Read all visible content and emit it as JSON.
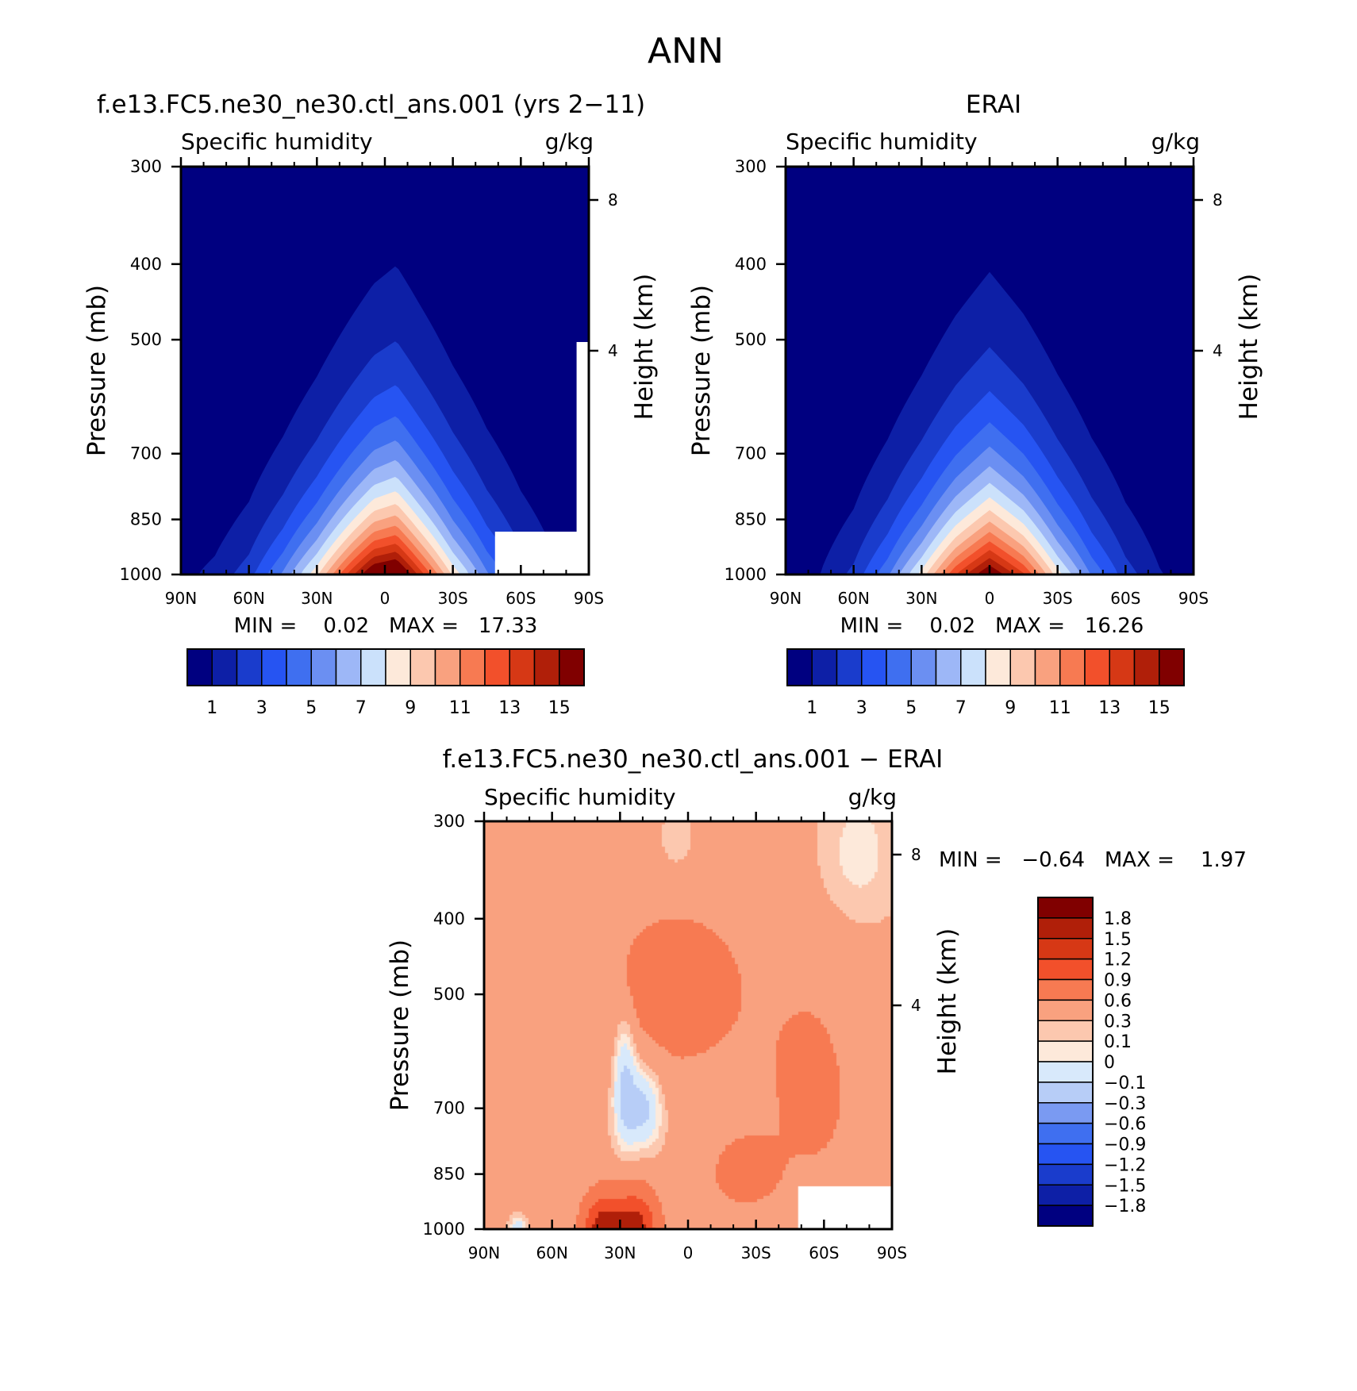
{
  "title": "ANN",
  "colors": {
    "humidity_levels": [
      "#000080",
      "#0d1fa6",
      "#1a3ccc",
      "#2654f2",
      "#3f6ff0",
      "#6b8ff2",
      "#9db7f7",
      "#cbe1fb",
      "#fde9da",
      "#fcc8af",
      "#f9a17f",
      "#f77a52",
      "#f2502b",
      "#d63815",
      "#b01f09",
      "#800000"
    ],
    "diff_levels": [
      "#000080",
      "#0d1fa6",
      "#1a3ccc",
      "#3056f2",
      "#7a9af2",
      "#b7cdf7",
      "#d8e9fb",
      "#fde9da",
      "#fcc8af",
      "#f9a17f",
      "#f77a52",
      "#f2502b",
      "#b01f09",
      "#800000"
    ]
  },
  "panels": [
    {
      "title": "f.e13.FC5.ne30_ne30.ctl_ans.001 (yrs 2−11)",
      "left_string": "Specific humidity",
      "right_string": "g/kg",
      "min_max": "MIN =    0.02   MAX =   17.33"
    },
    {
      "title": "ERAI",
      "left_string": "Specific humidity",
      "right_string": "g/kg",
      "min_max": "MIN =    0.02   MAX =   16.26"
    },
    {
      "title": "f.e13.FC5.ne30_ne30.ctl_ans.001 − ERAI",
      "left_string": "Specific humidity",
      "right_string": "g/kg",
      "min_max": "MIN =   −0.64   MAX =    1.97"
    }
  ],
  "axes": {
    "xlabels": [
      "90N",
      "60N",
      "30N",
      "0",
      "30S",
      "60S",
      "90S"
    ],
    "ylabel": "Pressure (mb)",
    "ylabels": [
      "300",
      "400",
      "500",
      "700",
      "850",
      "1000"
    ],
    "y2label": "Height (km)",
    "y2labels": [
      "8",
      "4"
    ]
  },
  "chart_data": [
    {
      "type": "heatmap",
      "title": "f.e13.FC5.ne30_ne30.ctl_ans.001 (yrs 2−11)",
      "subtitle": "Specific humidity",
      "units": "g/kg",
      "xlabel": "",
      "ylabel": "Pressure (mb)",
      "y2label": "Height (km)",
      "x": [
        "90N",
        "60N",
        "30N",
        "0",
        "30S",
        "60S",
        "90S"
      ],
      "x_range": [
        90,
        -90
      ],
      "y_ticks": [
        300,
        400,
        500,
        700,
        850,
        1000
      ],
      "y_range": [
        300,
        1000
      ],
      "y_scale": "log-pressure",
      "y2_ticks": [
        8,
        4
      ],
      "colorbar_labels": [
        "1",
        "3",
        "5",
        "7",
        "9",
        "11",
        "13",
        "15"
      ],
      "levels": [
        1,
        2,
        3,
        4,
        5,
        6,
        7,
        8,
        9,
        10,
        11,
        12,
        13,
        14,
        15
      ],
      "min": 0.02,
      "max": 17.33,
      "profile_peak_lat": -5,
      "profile": [
        [
          -90,
          0.3
        ],
        [
          -75,
          1.3
        ],
        [
          -60,
          2.8
        ],
        [
          -45,
          5.2
        ],
        [
          -30,
          8.8
        ],
        [
          -15,
          13.8
        ],
        [
          -5,
          17.3
        ],
        [
          5,
          16.6
        ],
        [
          15,
          13.6
        ],
        [
          30,
          8.8
        ],
        [
          45,
          5.2
        ],
        [
          60,
          2.6
        ],
        [
          75,
          1.3
        ],
        [
          90,
          0.7
        ]
      ]
    },
    {
      "type": "heatmap",
      "title": "ERAI",
      "subtitle": "Specific humidity",
      "units": "g/kg",
      "xlabel": "",
      "ylabel": "Pressure (mb)",
      "y2label": "Height (km)",
      "x": [
        "90N",
        "60N",
        "30N",
        "0",
        "30S",
        "60S",
        "90S"
      ],
      "x_range": [
        90,
        -90
      ],
      "y_ticks": [
        300,
        400,
        500,
        700,
        850,
        1000
      ],
      "y_range": [
        300,
        1000
      ],
      "y_scale": "log-pressure",
      "y2_ticks": [
        8,
        4
      ],
      "colorbar_labels": [
        "1",
        "3",
        "5",
        "7",
        "9",
        "11",
        "13",
        "15"
      ],
      "levels": [
        1,
        2,
        3,
        4,
        5,
        6,
        7,
        8,
        9,
        10,
        11,
        12,
        13,
        14,
        15
      ],
      "min": 0.02,
      "max": 16.26,
      "profile_peak_lat": 0,
      "profile": [
        [
          -90,
          0.3
        ],
        [
          -75,
          1.1
        ],
        [
          -60,
          2.5
        ],
        [
          -45,
          4.9
        ],
        [
          -30,
          8.5
        ],
        [
          -15,
          13.2
        ],
        [
          0,
          16.3
        ],
        [
          15,
          13.0
        ],
        [
          30,
          8.4
        ],
        [
          45,
          4.8
        ],
        [
          60,
          2.3
        ],
        [
          75,
          1.0
        ],
        [
          90,
          0.4
        ]
      ]
    },
    {
      "type": "heatmap",
      "title": "f.e13.FC5.ne30_ne30.ctl_ans.001 − ERAI",
      "subtitle": "Specific humidity",
      "units": "g/kg",
      "xlabel": "",
      "ylabel": "Pressure (mb)",
      "y2label": "Height (km)",
      "x": [
        "90N",
        "60N",
        "30N",
        "0",
        "30S",
        "60S",
        "90S"
      ],
      "x_range": [
        90,
        -90
      ],
      "y_ticks": [
        300,
        400,
        500,
        700,
        850,
        1000
      ],
      "y_range": [
        300,
        1000
      ],
      "y_scale": "log-pressure",
      "y2_ticks": [
        8,
        4
      ],
      "colorbar_labels": [
        "1.8",
        "1.5",
        "1.2",
        "0.9",
        "0.6",
        "0.3",
        "0.1",
        "0",
        "−0.1",
        "−0.3",
        "−0.6",
        "−0.9",
        "−1.2",
        "−1.5",
        "−1.8"
      ],
      "levels": [
        -1.8,
        -1.5,
        -1.2,
        -0.9,
        -0.6,
        -0.3,
        -0.1,
        0,
        0.1,
        0.3,
        0.6,
        0.9,
        1.2,
        1.5,
        1.8
      ],
      "min": -0.64,
      "max": 1.97
    }
  ]
}
